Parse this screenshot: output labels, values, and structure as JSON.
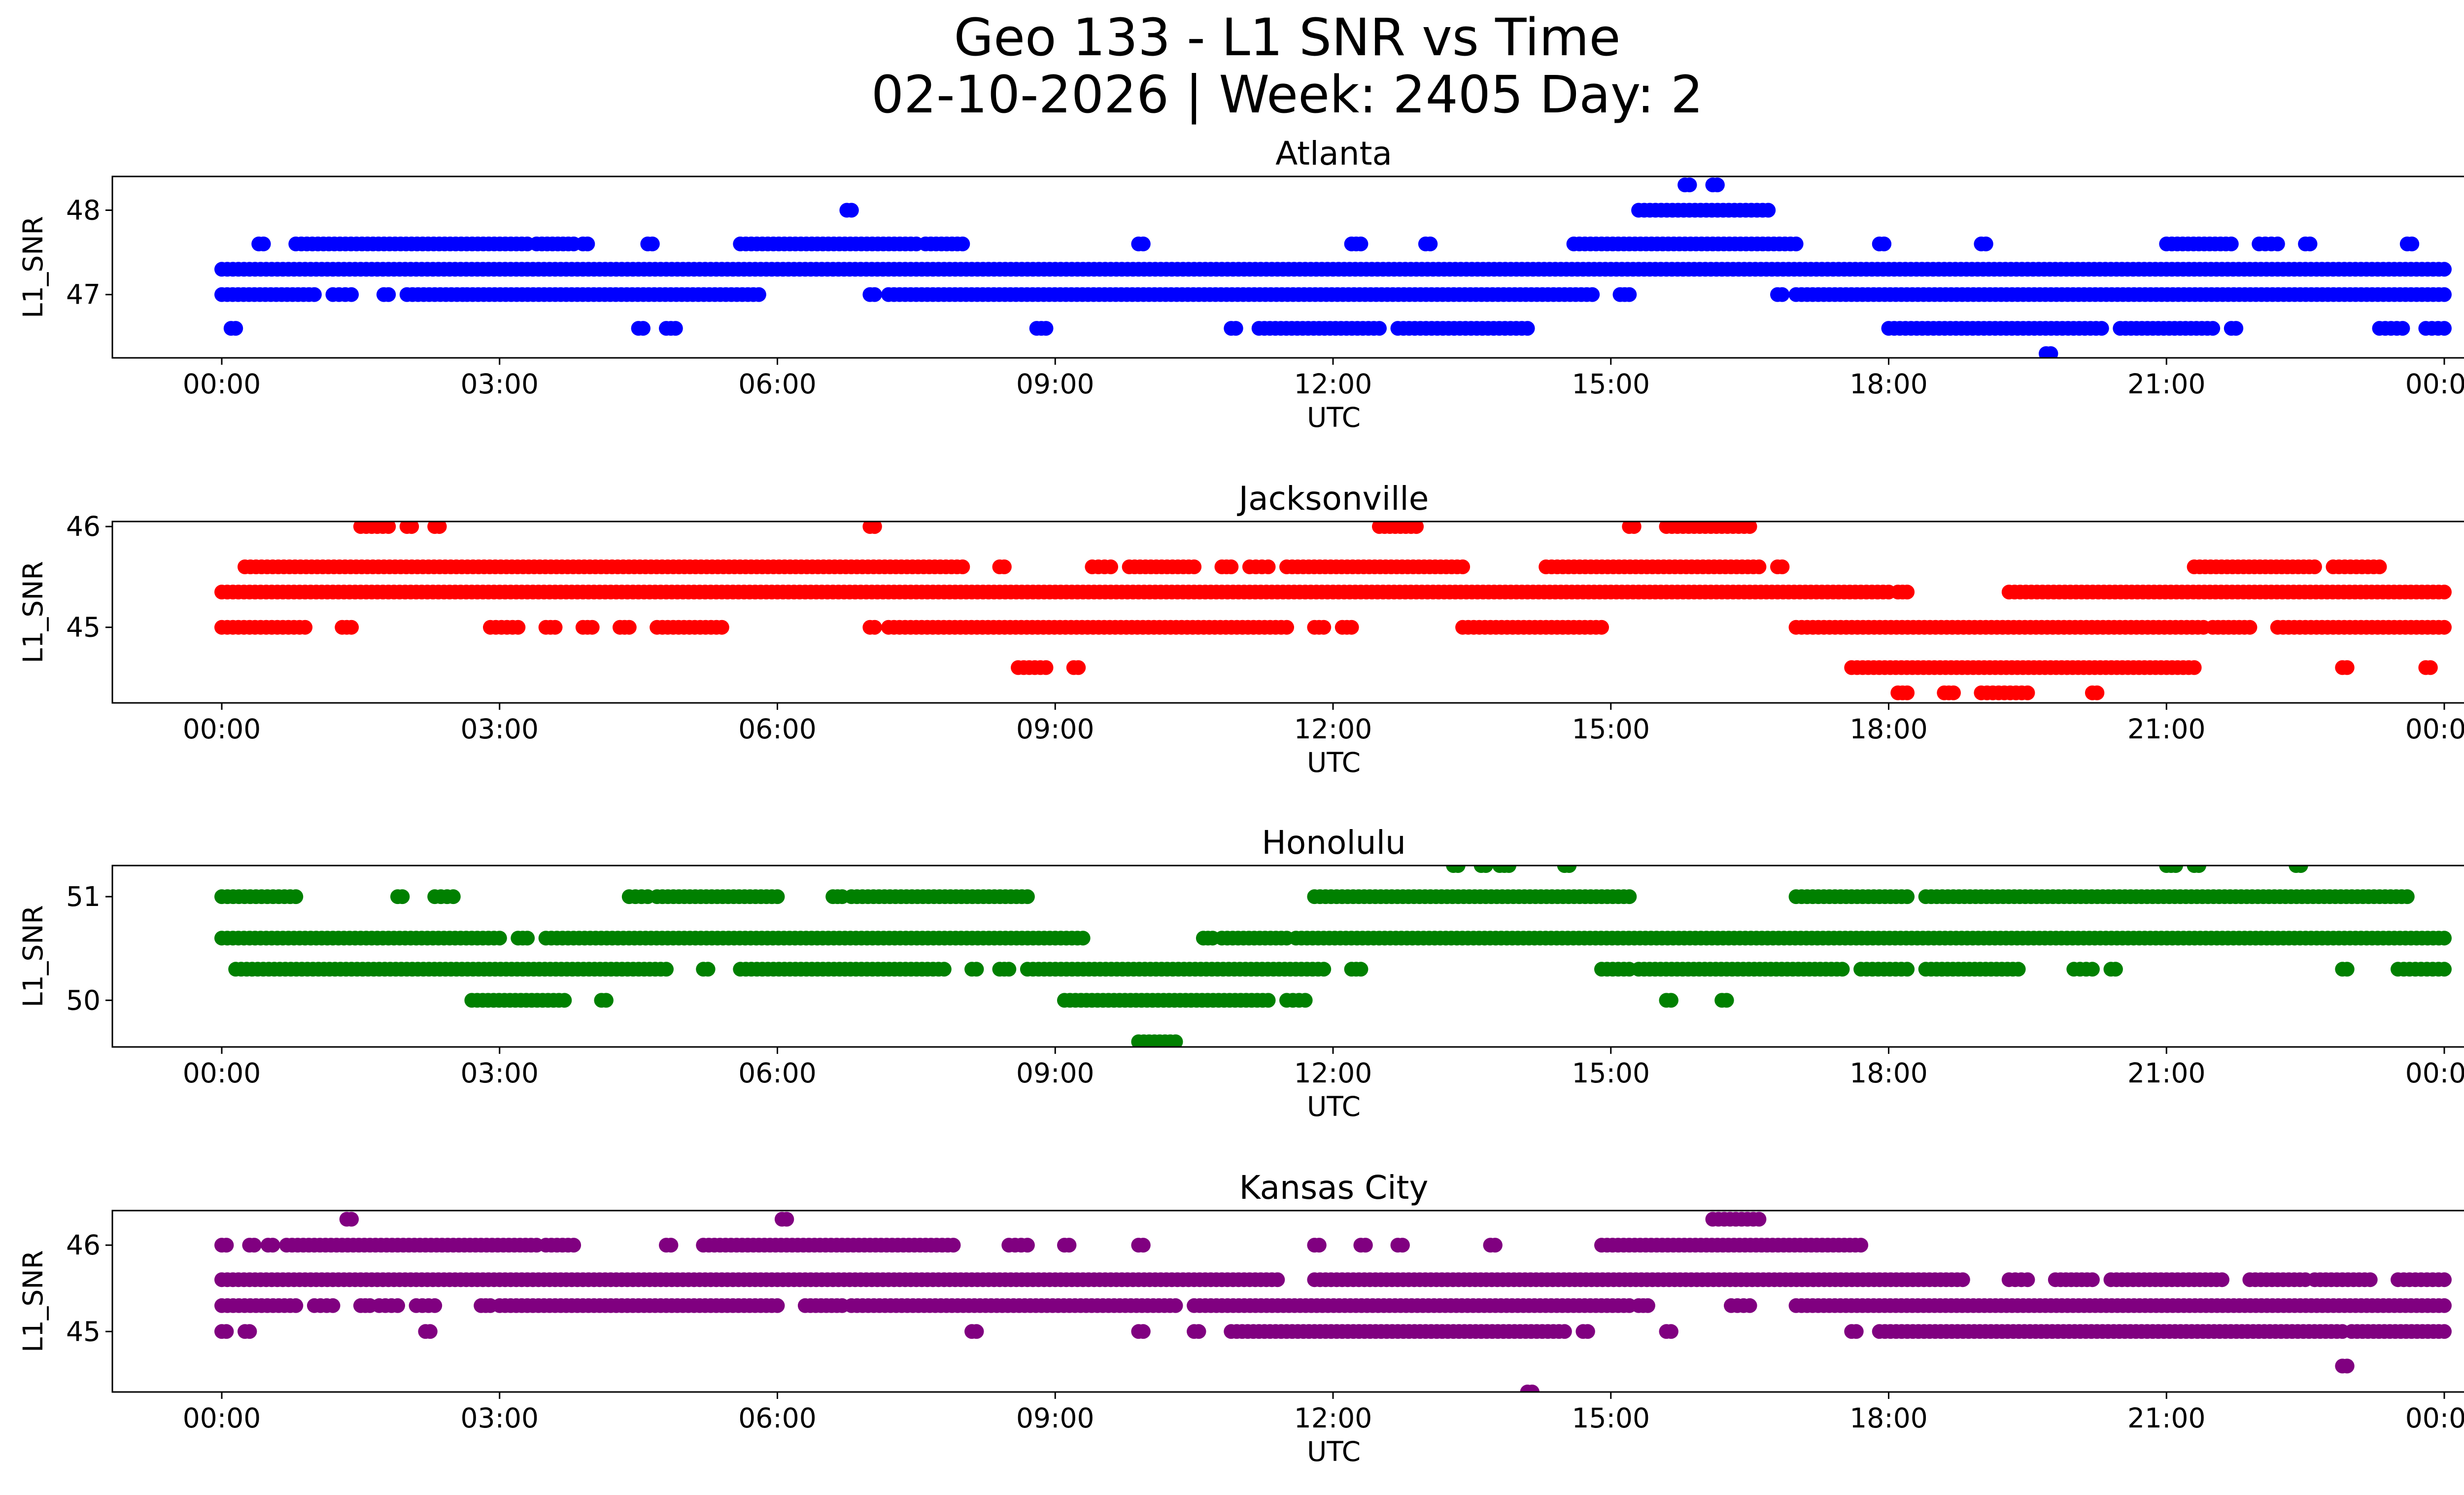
{
  "figure": {
    "title_line1": "Geo 133 - L1 SNR vs Time",
    "title_line2": "02-10-2026 | Week: 2405 Day: 2"
  },
  "chart_data": [
    {
      "type": "scatter",
      "title": "Atlanta",
      "xlabel": "UTC",
      "ylabel": "L1_SNR",
      "color": "#0000ff",
      "xlim": [
        "00:00",
        "24:00"
      ],
      "ylim": [
        46.25,
        48.4
      ],
      "yticks": [
        47,
        48
      ],
      "xtick_labels": [
        "00:00",
        "03:00",
        "06:00",
        "09:00",
        "12:00",
        "15:00",
        "18:00",
        "21:00",
        "00:00"
      ],
      "grid": false,
      "levels": [
        {
          "y": 47.3,
          "segments": [
            [
              0.0,
              24.0
            ]
          ]
        },
        {
          "y": 47.0,
          "segments": [
            [
              0.0,
              1.0
            ],
            [
              1.2,
              1.4
            ],
            [
              1.75,
              1.8
            ],
            [
              2.0,
              2.6
            ],
            [
              2.65,
              5.8
            ],
            [
              7.0,
              7.05
            ],
            [
              7.2,
              14.8
            ],
            [
              15.1,
              15.2
            ],
            [
              16.8,
              16.85
            ],
            [
              17.0,
              24.0
            ]
          ]
        },
        {
          "y": 47.6,
          "segments": [
            [
              0.4,
              0.45
            ],
            [
              0.8,
              3.3
            ],
            [
              3.4,
              3.8
            ],
            [
              3.9,
              3.95
            ],
            [
              4.6,
              4.65
            ],
            [
              5.6,
              7.5
            ],
            [
              7.6,
              8.0
            ],
            [
              9.9,
              9.95
            ],
            [
              12.2,
              12.3
            ],
            [
              13.0,
              13.05
            ],
            [
              14.6,
              17.0
            ],
            [
              17.9,
              17.95
            ],
            [
              19.0,
              19.05
            ],
            [
              21.0,
              21.7
            ],
            [
              22.0,
              22.2
            ],
            [
              22.5,
              22.55
            ],
            [
              23.6,
              23.65
            ]
          ]
        },
        {
          "y": 48.0,
          "segments": [
            [
              6.75,
              6.8
            ],
            [
              15.3,
              16.7
            ]
          ]
        },
        {
          "y": 48.3,
          "segments": [
            [
              15.8,
              15.85
            ],
            [
              16.1,
              16.15
            ]
          ]
        },
        {
          "y": 46.6,
          "segments": [
            [
              0.1,
              0.15
            ],
            [
              4.5,
              4.55
            ],
            [
              4.8,
              4.9
            ],
            [
              8.8,
              8.9
            ],
            [
              10.9,
              10.95
            ],
            [
              11.2,
              12.5
            ],
            [
              12.7,
              14.1
            ],
            [
              18.0,
              20.3
            ],
            [
              20.5,
              21.5
            ],
            [
              21.7,
              21.75
            ],
            [
              23.3,
              23.55
            ],
            [
              23.8,
              24.0
            ]
          ]
        },
        {
          "y": 46.3,
          "segments": [
            [
              19.7,
              19.75
            ]
          ]
        }
      ]
    },
    {
      "type": "scatter",
      "title": "Jacksonville",
      "xlabel": "UTC",
      "ylabel": "L1_SNR",
      "color": "#ff0000",
      "xlim": [
        "00:00",
        "24:00"
      ],
      "ylim": [
        44.25,
        46.05
      ],
      "yticks": [
        45,
        46
      ],
      "ytick_labels": [
        "45",
        "46"
      ],
      "xtick_labels": [
        "00:00",
        "03:00",
        "06:00",
        "09:00",
        "12:00",
        "15:00",
        "18:00",
        "21:00",
        "00:00"
      ],
      "grid": false,
      "levels": [
        {
          "y": 45.35,
          "segments": [
            [
              0.0,
              18.0
            ],
            [
              18.1,
              18.2
            ],
            [
              19.3,
              24.0
            ]
          ]
        },
        {
          "y": 45.0,
          "segments": [
            [
              0.0,
              0.9
            ],
            [
              1.3,
              1.4
            ],
            [
              2.9,
              3.2
            ],
            [
              3.5,
              3.6
            ],
            [
              3.9,
              4.0
            ],
            [
              4.3,
              4.4
            ],
            [
              4.7,
              5.4
            ],
            [
              7.0,
              7.05
            ],
            [
              7.2,
              11.5
            ],
            [
              11.8,
              11.9
            ],
            [
              12.1,
              12.2
            ],
            [
              13.4,
              14.9
            ],
            [
              17.0,
              21.4
            ],
            [
              21.5,
              21.9
            ],
            [
              22.2,
              24.0
            ]
          ]
        },
        {
          "y": 45.6,
          "segments": [
            [
              0.25,
              8.0
            ],
            [
              8.4,
              8.45
            ],
            [
              9.4,
              9.6
            ],
            [
              9.8,
              10.5
            ],
            [
              10.8,
              10.9
            ],
            [
              11.1,
              11.3
            ],
            [
              11.5,
              13.4
            ],
            [
              14.3,
              16.6
            ],
            [
              16.8,
              16.85
            ],
            [
              21.3,
              22.6
            ],
            [
              22.8,
              23.3
            ]
          ]
        },
        {
          "y": 46.0,
          "segments": [
            [
              1.5,
              1.8
            ],
            [
              2.0,
              2.05
            ],
            [
              2.3,
              2.35
            ],
            [
              7.0,
              7.05
            ],
            [
              12.5,
              12.9
            ],
            [
              15.2,
              15.25
            ],
            [
              15.6,
              16.5
            ]
          ]
        },
        {
          "y": 44.6,
          "segments": [
            [
              8.6,
              8.9
            ],
            [
              9.2,
              9.25
            ],
            [
              17.6,
              21.3
            ],
            [
              22.9,
              22.95
            ],
            [
              23.8,
              23.85
            ]
          ]
        },
        {
          "y": 44.35,
          "segments": [
            [
              18.1,
              18.2
            ],
            [
              18.6,
              18.7
            ],
            [
              19.0,
              19.5
            ],
            [
              20.2,
              20.25
            ]
          ]
        }
      ]
    },
    {
      "type": "scatter",
      "title": "Honolulu",
      "xlabel": "UTC",
      "ylabel": "L1_SNR",
      "color": "#008000",
      "xlim": [
        "00:00",
        "24:00"
      ],
      "ylim": [
        49.55,
        51.3
      ],
      "yticks": [
        50,
        51
      ],
      "xtick_labels": [
        "00:00",
        "03:00",
        "06:00",
        "09:00",
        "12:00",
        "15:00",
        "18:00",
        "21:00",
        "00:00"
      ],
      "grid": false,
      "levels": [
        {
          "y": 50.6,
          "segments": [
            [
              0.0,
              3.0
            ],
            [
              3.2,
              3.3
            ],
            [
              3.5,
              9.3
            ],
            [
              10.6,
              10.7
            ],
            [
              10.8,
              11.5
            ],
            [
              11.6,
              24.0
            ]
          ]
        },
        {
          "y": 50.3,
          "segments": [
            [
              0.15,
              4.8
            ],
            [
              5.2,
              5.25
            ],
            [
              5.6,
              7.8
            ],
            [
              8.1,
              8.15
            ],
            [
              8.4,
              8.5
            ],
            [
              8.7,
              11.9
            ],
            [
              12.2,
              12.3
            ],
            [
              14.9,
              15.2
            ],
            [
              15.3,
              17.5
            ],
            [
              17.7,
              18.2
            ],
            [
              18.4,
              19.4
            ],
            [
              20.0,
              20.2
            ],
            [
              20.4,
              20.45
            ],
            [
              22.9,
              22.95
            ],
            [
              23.5,
              24.0
            ]
          ]
        },
        {
          "y": 51.0,
          "segments": [
            [
              0.0,
              0.8
            ],
            [
              1.9,
              1.95
            ],
            [
              2.3,
              2.5
            ],
            [
              4.4,
              4.6
            ],
            [
              4.7,
              6.0
            ],
            [
              6.6,
              6.7
            ],
            [
              6.8,
              8.7
            ],
            [
              11.8,
              15.2
            ],
            [
              17.0,
              18.2
            ],
            [
              18.4,
              23.6
            ]
          ]
        },
        {
          "y": 50.0,
          "segments": [
            [
              2.7,
              3.7
            ],
            [
              4.1,
              4.15
            ],
            [
              9.1,
              11.3
            ],
            [
              11.5,
              11.7
            ],
            [
              15.6,
              15.65
            ],
            [
              16.2,
              16.25
            ]
          ]
        },
        {
          "y": 51.3,
          "segments": [
            [
              13.3,
              13.35
            ],
            [
              13.6,
              13.65
            ],
            [
              13.8,
              13.9
            ],
            [
              14.5,
              14.55
            ],
            [
              21.0,
              21.1
            ],
            [
              21.3,
              21.35
            ],
            [
              22.4,
              22.45
            ]
          ]
        },
        {
          "y": 49.6,
          "segments": [
            [
              9.9,
              10.3
            ]
          ]
        }
      ]
    },
    {
      "type": "scatter",
      "title": "Kansas City",
      "xlabel": "UTC",
      "ylabel": "L1_SNR",
      "color": "#800080",
      "xlim": [
        "00:00",
        "24:00"
      ],
      "ylim": [
        44.3,
        46.4
      ],
      "yticks": [
        45,
        46
      ],
      "ytick_labels": [
        "45",
        "46"
      ],
      "xtick_labels": [
        "00:00",
        "03:00",
        "06:00",
        "09:00",
        "12:00",
        "15:00",
        "18:00",
        "21:00",
        "00:00"
      ],
      "grid": false,
      "levels": [
        {
          "y": 45.6,
          "segments": [
            [
              0.0,
              11.4
            ],
            [
              11.8,
              18.8
            ],
            [
              19.3,
              19.5
            ],
            [
              19.8,
              20.2
            ],
            [
              20.4,
              21.6
            ],
            [
              21.9,
              22.5
            ],
            [
              22.6,
              23.2
            ],
            [
              23.5,
              24.0
            ]
          ]
        },
        {
          "y": 45.3,
          "segments": [
            [
              0.0,
              0.8
            ],
            [
              1.0,
              1.2
            ],
            [
              1.5,
              1.6
            ],
            [
              1.7,
              1.9
            ],
            [
              2.1,
              2.3
            ],
            [
              2.8,
              2.9
            ],
            [
              3.0,
              6.0
            ],
            [
              6.3,
              6.7
            ],
            [
              6.8,
              10.3
            ],
            [
              10.5,
              15.2
            ],
            [
              15.3,
              15.4
            ],
            [
              16.3,
              16.5
            ],
            [
              17.0,
              24.0
            ]
          ]
        },
        {
          "y": 46.0,
          "segments": [
            [
              0.0,
              0.05
            ],
            [
              0.3,
              0.35
            ],
            [
              0.5,
              0.55
            ],
            [
              0.7,
              3.4
            ],
            [
              3.5,
              3.8
            ],
            [
              4.8,
              4.85
            ],
            [
              5.2,
              7.9
            ],
            [
              8.5,
              8.7
            ],
            [
              9.1,
              9.15
            ],
            [
              9.9,
              9.95
            ],
            [
              11.8,
              11.85
            ],
            [
              12.3,
              12.35
            ],
            [
              12.7,
              12.75
            ],
            [
              13.7,
              13.75
            ],
            [
              14.9,
              17.7
            ]
          ]
        },
        {
          "y": 45.0,
          "segments": [
            [
              0.0,
              0.05
            ],
            [
              0.25,
              0.3
            ],
            [
              2.2,
              2.25
            ],
            [
              8.1,
              8.15
            ],
            [
              9.9,
              9.95
            ],
            [
              10.5,
              10.55
            ],
            [
              10.9,
              14.5
            ],
            [
              14.7,
              14.75
            ],
            [
              15.6,
              15.65
            ],
            [
              17.6,
              17.65
            ],
            [
              17.9,
              22.9
            ],
            [
              23.0,
              24.0
            ]
          ]
        },
        {
          "y": 46.3,
          "segments": [
            [
              1.35,
              1.4
            ],
            [
              6.05,
              6.1
            ],
            [
              16.1,
              16.6
            ]
          ]
        },
        {
          "y": 44.6,
          "segments": [
            [
              22.9,
              22.95
            ]
          ]
        },
        {
          "y": 44.3,
          "segments": [
            [
              14.1,
              14.15
            ]
          ]
        }
      ]
    }
  ]
}
